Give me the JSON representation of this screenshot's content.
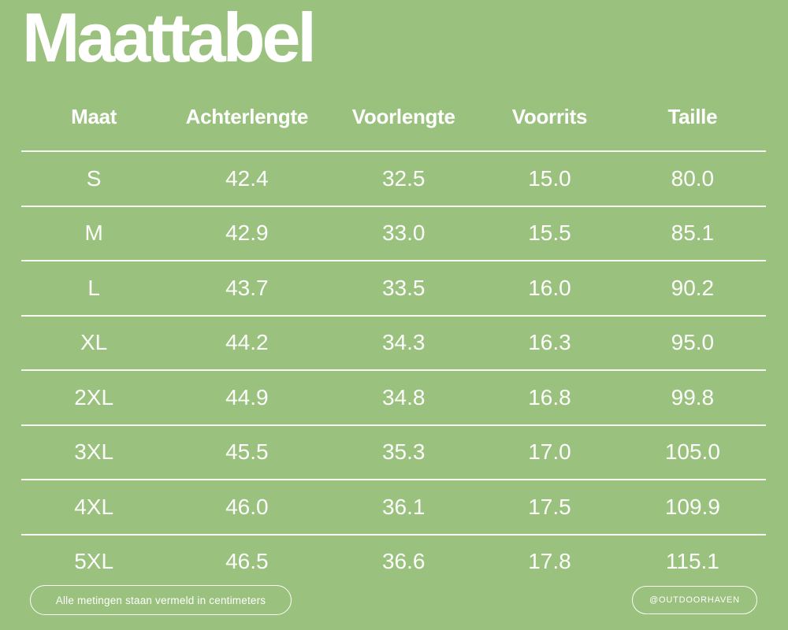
{
  "title": "Maattabel",
  "colors": {
    "background": "#9BC17F",
    "text": "#FFFFFF",
    "divider_line": "#F4F6EF"
  },
  "table": {
    "columns": [
      "Maat",
      "Achterlengte",
      "Voorlengte",
      "Voorrits",
      "Taille"
    ],
    "rows": [
      [
        "S",
        "42.4",
        "32.5",
        "15.0",
        "80.0"
      ],
      [
        "M",
        "42.9",
        "33.0",
        "15.5",
        "85.1"
      ],
      [
        "L",
        "43.7",
        "33.5",
        "16.0",
        "90.2"
      ],
      [
        "XL",
        "44.2",
        "34.3",
        "16.3",
        "95.0"
      ],
      [
        "2XL",
        "44.9",
        "34.8",
        "16.8",
        "99.8"
      ],
      [
        "3XL",
        "45.5",
        "35.3",
        "17.0",
        "105.0"
      ],
      [
        "4XL",
        "46.0",
        "36.1",
        "17.5",
        "109.9"
      ],
      [
        "5XL",
        "46.5",
        "36.6",
        "17.8",
        "115.1"
      ]
    ]
  },
  "footer": {
    "note": "Alle metingen staan vermeld in centimeters",
    "handle": "@OUTDOORHAVEN"
  },
  "chart_data": {
    "type": "table",
    "title": "Maattabel",
    "columns": [
      "Maat",
      "Achterlengte",
      "Voorlengte",
      "Voorrits",
      "Taille"
    ],
    "units": "centimeters",
    "rows": [
      {
        "Maat": "S",
        "Achterlengte": 42.4,
        "Voorlengte": 32.5,
        "Voorrits": 15.0,
        "Taille": 80.0
      },
      {
        "Maat": "M",
        "Achterlengte": 42.9,
        "Voorlengte": 33.0,
        "Voorrits": 15.5,
        "Taille": 85.1
      },
      {
        "Maat": "L",
        "Achterlengte": 43.7,
        "Voorlengte": 33.5,
        "Voorrits": 16.0,
        "Taille": 90.2
      },
      {
        "Maat": "XL",
        "Achterlengte": 44.2,
        "Voorlengte": 34.3,
        "Voorrits": 16.3,
        "Taille": 95.0
      },
      {
        "Maat": "2XL",
        "Achterlengte": 44.9,
        "Voorlengte": 34.8,
        "Voorrits": 16.8,
        "Taille": 99.8
      },
      {
        "Maat": "3XL",
        "Achterlengte": 45.5,
        "Voorlengte": 35.3,
        "Voorrits": 17.0,
        "Taille": 105.0
      },
      {
        "Maat": "4XL",
        "Achterlengte": 46.0,
        "Voorlengte": 36.1,
        "Voorrits": 17.5,
        "Taille": 109.9
      },
      {
        "Maat": "5XL",
        "Achterlengte": 46.5,
        "Voorlengte": 36.6,
        "Voorrits": 17.8,
        "Taille": 115.1
      }
    ]
  }
}
